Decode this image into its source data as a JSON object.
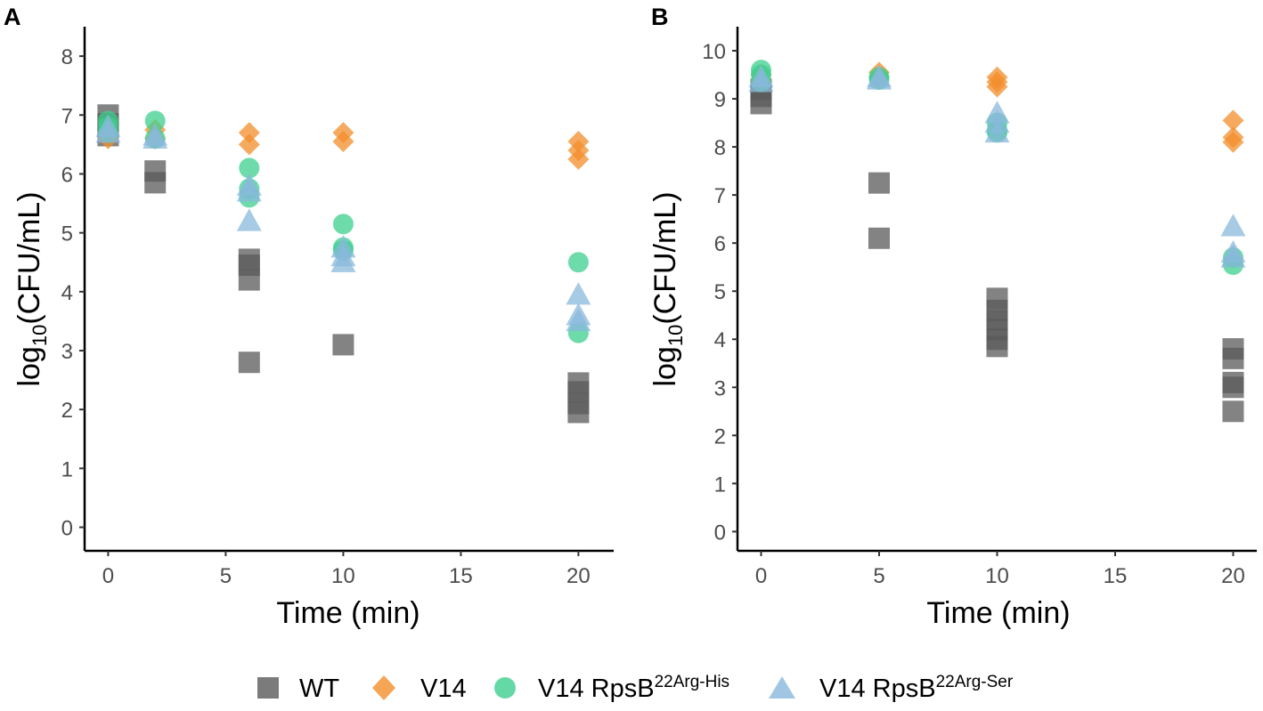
{
  "chart_data": [
    {
      "type": "scatter",
      "panel_label": "A",
      "xlabel": "Time (min)",
      "ylabel_base": "log",
      "ylabel_sub": "10",
      "ylabel_rest": "(CFU/mL)",
      "xlim": [
        -1,
        21.5
      ],
      "ylim": [
        -0.4,
        8.5
      ],
      "xticks": [
        0,
        5,
        10,
        15,
        20
      ],
      "yticks": [
        0,
        1,
        2,
        3,
        4,
        5,
        6,
        7,
        8
      ],
      "series": [
        {
          "name": "WT",
          "color": "#5a5a5a",
          "shape": "square",
          "points": [
            [
              0,
              7.0
            ],
            [
              0,
              6.85
            ],
            [
              0,
              6.65
            ],
            [
              2,
              6.05
            ],
            [
              2,
              5.85
            ],
            [
              6,
              4.55
            ],
            [
              6,
              4.45
            ],
            [
              6,
              4.2
            ],
            [
              6,
              2.8
            ],
            [
              10,
              3.1
            ],
            [
              20,
              2.45
            ],
            [
              20,
              2.3
            ],
            [
              20,
              2.1
            ],
            [
              20,
              1.95
            ]
          ]
        },
        {
          "name": "V14",
          "color": "#f28e2b",
          "shape": "diamond",
          "points": [
            [
              0,
              6.6
            ],
            [
              0,
              6.7
            ],
            [
              2,
              6.75
            ],
            [
              2,
              6.6
            ],
            [
              6,
              6.7
            ],
            [
              6,
              6.5
            ],
            [
              10,
              6.7
            ],
            [
              10,
              6.55
            ],
            [
              20,
              6.55
            ],
            [
              20,
              6.4
            ],
            [
              20,
              6.25
            ]
          ]
        },
        {
          "name": "V14 RpsB22Arg-His",
          "color": "#3ecf8e",
          "shape": "circle",
          "points": [
            [
              0,
              6.9
            ],
            [
              0,
              6.8
            ],
            [
              0,
              6.7
            ],
            [
              2,
              6.9
            ],
            [
              2,
              6.6
            ],
            [
              6,
              6.1
            ],
            [
              6,
              5.75
            ],
            [
              6,
              5.6
            ],
            [
              10,
              5.15
            ],
            [
              10,
              4.75
            ],
            [
              10,
              4.7
            ],
            [
              20,
              4.5
            ],
            [
              20,
              3.3
            ]
          ]
        },
        {
          "name": "V14 RpsB22Arg-Ser",
          "color": "#89b8dc",
          "shape": "triangle",
          "points": [
            [
              0,
              6.8
            ],
            [
              0,
              6.7
            ],
            [
              2,
              6.65
            ],
            [
              2,
              6.6
            ],
            [
              6,
              5.8
            ],
            [
              6,
              5.7
            ],
            [
              6,
              5.2
            ],
            [
              10,
              4.75
            ],
            [
              10,
              4.6
            ],
            [
              10,
              4.5
            ],
            [
              20,
              3.95
            ],
            [
              20,
              3.6
            ],
            [
              20,
              3.5
            ]
          ]
        }
      ]
    },
    {
      "type": "scatter",
      "panel_label": "B",
      "xlabel": "Time (min)",
      "ylabel_base": "log",
      "ylabel_sub": "10",
      "ylabel_rest": "(CFU/mL)",
      "xlim": [
        -1,
        21
      ],
      "ylim": [
        -0.4,
        10.5
      ],
      "xticks": [
        0,
        5,
        10,
        15,
        20
      ],
      "yticks": [
        0,
        1,
        2,
        3,
        4,
        5,
        6,
        7,
        8,
        9,
        10
      ],
      "series": [
        {
          "name": "WT",
          "color": "#5a5a5a",
          "shape": "square",
          "points": [
            [
              0,
              9.2
            ],
            [
              0,
              9.05
            ],
            [
              0,
              8.9
            ],
            [
              5,
              7.25
            ],
            [
              5,
              6.1
            ],
            [
              10,
              4.85
            ],
            [
              10,
              4.6
            ],
            [
              10,
              4.4
            ],
            [
              10,
              4.2
            ],
            [
              10,
              4.0
            ],
            [
              10,
              3.85
            ],
            [
              20,
              3.8
            ],
            [
              20,
              3.6
            ],
            [
              20,
              3.1
            ],
            [
              20,
              3.0
            ],
            [
              20,
              2.5
            ]
          ]
        },
        {
          "name": "V14",
          "color": "#f28e2b",
          "shape": "diamond",
          "points": [
            [
              0,
              9.5
            ],
            [
              0,
              9.4
            ],
            [
              5,
              9.55
            ],
            [
              5,
              9.45
            ],
            [
              10,
              9.45
            ],
            [
              10,
              9.35
            ],
            [
              10,
              9.25
            ],
            [
              20,
              8.55
            ],
            [
              20,
              8.2
            ],
            [
              20,
              8.1
            ]
          ]
        },
        {
          "name": "V14 RpsB22Arg-His",
          "color": "#3ecf8e",
          "shape": "circle",
          "points": [
            [
              0,
              9.6
            ],
            [
              0,
              9.5
            ],
            [
              0,
              9.35
            ],
            [
              5,
              9.45
            ],
            [
              5,
              9.4
            ],
            [
              10,
              8.5
            ],
            [
              10,
              8.35
            ],
            [
              10,
              8.3
            ],
            [
              20,
              5.7
            ],
            [
              20,
              5.55
            ]
          ]
        },
        {
          "name": "V14 RpsB22Arg-Ser",
          "color": "#89b8dc",
          "shape": "triangle",
          "points": [
            [
              0,
              9.45
            ],
            [
              0,
              9.35
            ],
            [
              5,
              9.45
            ],
            [
              5,
              9.4
            ],
            [
              10,
              8.7
            ],
            [
              10,
              8.5
            ],
            [
              10,
              8.3
            ],
            [
              20,
              6.35
            ],
            [
              20,
              5.8
            ],
            [
              20,
              5.7
            ]
          ]
        }
      ]
    }
  ],
  "legend": [
    {
      "base": "WT",
      "sup": "",
      "shape": "square",
      "color": "#5a5a5a"
    },
    {
      "base": "V14",
      "sup": "",
      "shape": "diamond",
      "color": "#f28e2b"
    },
    {
      "base": "V14 RpsB",
      "sup": "22Arg-His",
      "shape": "circle",
      "color": "#3ecf8e"
    },
    {
      "base": "V14 RpsB",
      "sup": "22Arg-Ser",
      "shape": "triangle",
      "color": "#89b8dc"
    }
  ]
}
